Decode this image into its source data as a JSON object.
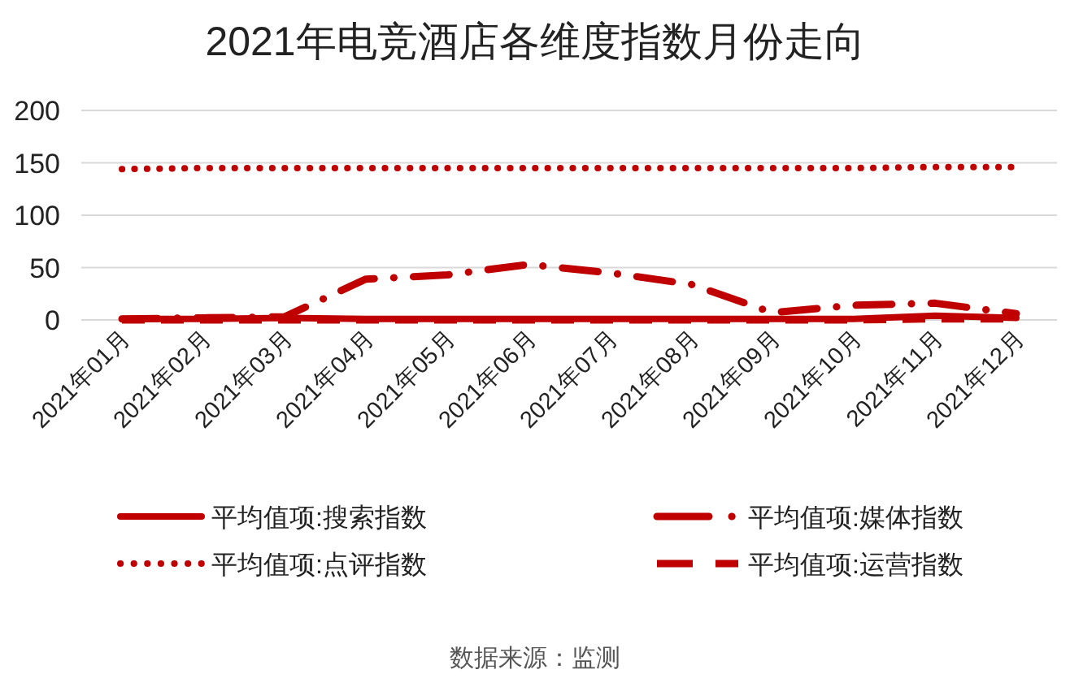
{
  "chart_data": {
    "type": "line",
    "title": "2021年电竞酒店各维度指数月份走向",
    "categories": [
      "2021年01月",
      "2021年02月",
      "2021年03月",
      "2021年04月",
      "2021年05月",
      "2021年06月",
      "2021年07月",
      "2021年08月",
      "2021年09月",
      "2021年10月",
      "2021年11月",
      "2021年12月"
    ],
    "series": [
      {
        "name": "平均值项:搜索指数",
        "color": "#c00000",
        "line_style": "solid",
        "values": [
          1,
          1,
          2,
          1,
          1,
          1,
          1,
          1,
          1,
          1,
          4,
          2
        ]
      },
      {
        "name": "平均值项:媒体指数",
        "color": "#c00000",
        "line_style": "dashdot",
        "values": [
          1,
          2,
          3,
          39,
          43,
          53,
          45,
          34,
          7,
          14,
          16,
          6
        ]
      },
      {
        "name": "平均值项:点评指数",
        "color": "#c00000",
        "line_style": "dotted",
        "values": [
          144,
          145,
          145,
          145,
          145,
          145,
          145,
          145,
          145,
          145,
          146,
          146
        ]
      },
      {
        "name": "平均值项:运营指数",
        "color": "#c00000",
        "line_style": "dashed",
        "values": [
          0,
          0,
          0,
          0,
          0,
          0,
          0,
          0,
          0,
          0,
          1,
          1
        ]
      }
    ],
    "ylim": [
      0,
      200
    ],
    "yticks": [
      0,
      50,
      100,
      150,
      200
    ],
    "grid": "y",
    "legend": "bottom",
    "annotations": [
      "数据来源：监测"
    ]
  }
}
